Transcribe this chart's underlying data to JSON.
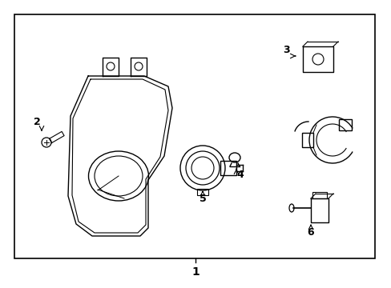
{
  "background_color": "#ffffff",
  "border_color": "#000000",
  "line_color": "#000000",
  "text_color": "#000000",
  "fig_width": 4.89,
  "fig_height": 3.6,
  "dpi": 100,
  "label_1": "1",
  "label_2": "2",
  "label_3": "3",
  "label_4": "4",
  "label_5": "5",
  "label_6": "6"
}
